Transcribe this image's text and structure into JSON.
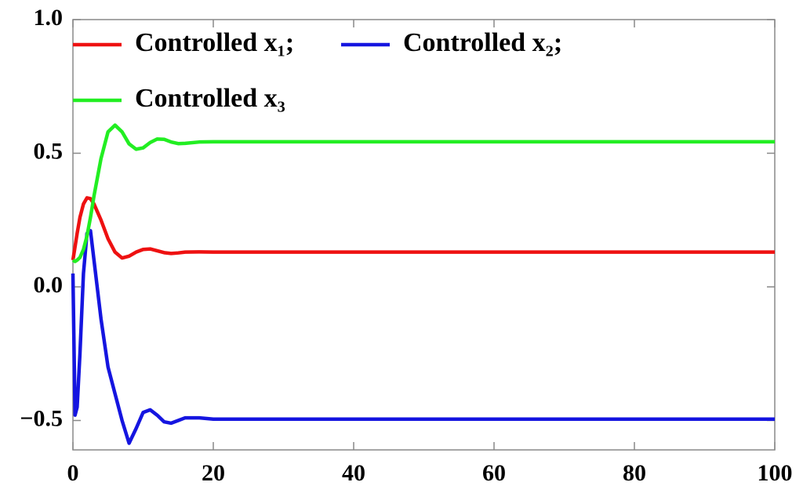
{
  "chart_data": {
    "type": "line",
    "x": [
      0,
      0.3,
      0.6,
      1,
      1.5,
      2,
      2.5,
      3,
      4,
      5,
      6,
      7,
      8,
      9,
      10,
      11,
      12,
      13,
      14,
      15,
      16,
      18,
      20,
      25,
      30,
      40,
      50,
      60,
      70,
      80,
      90,
      100
    ],
    "series": [
      {
        "name": "Controlled x₁;",
        "color": "#ee1111",
        "values": [
          0.1,
          0.15,
          0.2,
          0.26,
          0.31,
          0.333,
          0.33,
          0.31,
          0.25,
          0.18,
          0.13,
          0.108,
          0.115,
          0.13,
          0.14,
          0.142,
          0.135,
          0.128,
          0.125,
          0.127,
          0.13,
          0.131,
          0.13,
          0.13,
          0.13,
          0.13,
          0.13,
          0.13,
          0.13,
          0.13,
          0.13,
          0.13
        ]
      },
      {
        "name": "Controlled x₂;",
        "color": "#1515e0",
        "values": [
          0.05,
          -0.48,
          -0.45,
          -0.25,
          0.05,
          0.2,
          0.21,
          0.1,
          -0.12,
          -0.3,
          -0.4,
          -0.5,
          -0.585,
          -0.53,
          -0.47,
          -0.46,
          -0.48,
          -0.505,
          -0.51,
          -0.5,
          -0.49,
          -0.49,
          -0.495,
          -0.495,
          -0.495,
          -0.495,
          -0.495,
          -0.495,
          -0.495,
          -0.495,
          -0.495,
          -0.495
        ]
      },
      {
        "name": "Controlled x₃",
        "color": "#22ee22",
        "values": [
          0.1,
          0.095,
          0.1,
          0.11,
          0.14,
          0.19,
          0.26,
          0.34,
          0.48,
          0.58,
          0.605,
          0.58,
          0.535,
          0.515,
          0.52,
          0.54,
          0.553,
          0.552,
          0.542,
          0.536,
          0.537,
          0.542,
          0.543,
          0.543,
          0.543,
          0.543,
          0.543,
          0.543,
          0.543,
          0.543,
          0.543,
          0.543
        ]
      }
    ],
    "xlim": [
      0,
      100
    ],
    "xticks": [
      0,
      20,
      40,
      60,
      80,
      100
    ],
    "ylim": [
      -0.61,
      1.0
    ],
    "yticks": [
      {
        "value": -0.5,
        "label": "−0.5"
      },
      {
        "value": 0,
        "label": "0.0"
      },
      {
        "value": 0.5,
        "label": "0.5"
      },
      {
        "value": 1.0,
        "label": "1.0"
      }
    ]
  }
}
